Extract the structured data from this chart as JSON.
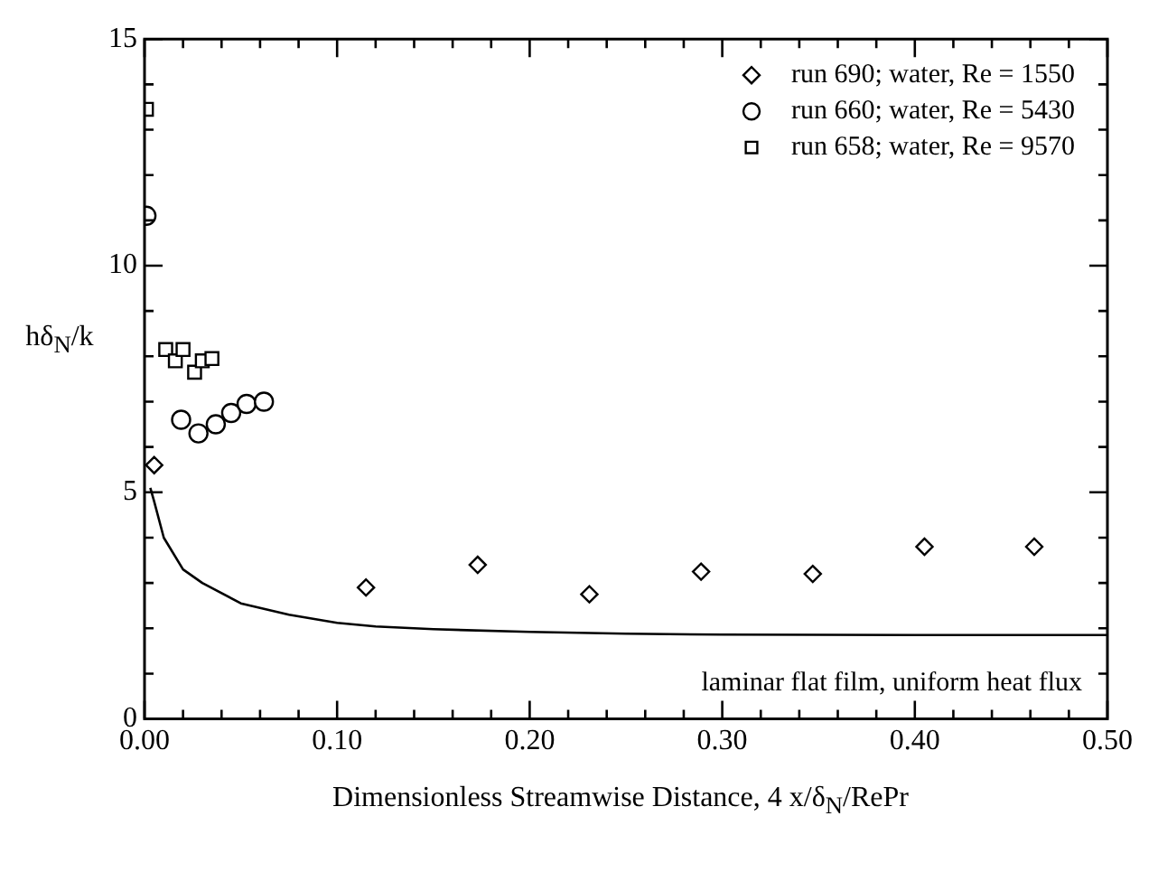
{
  "chart_data": {
    "type": "scatter",
    "xlabel": "Dimensionless Streamwise Distance, 4 x/δ$_{N}$/RePr",
    "ylabel": "hδ$_{N}$/k",
    "xlim": [
      0,
      0.5
    ],
    "ylim": [
      0,
      15
    ],
    "xticks": [
      {
        "value": 0,
        "label": "0.00"
      },
      {
        "value": 0.02,
        "label": null
      },
      {
        "value": 0.04,
        "label": null
      },
      {
        "value": 0.06,
        "label": null
      },
      {
        "value": 0.08,
        "label": null
      },
      {
        "value": 0.1,
        "label": "0.10"
      },
      {
        "value": 0.12,
        "label": null
      },
      {
        "value": 0.14,
        "label": null
      },
      {
        "value": 0.16,
        "label": null
      },
      {
        "value": 0.18,
        "label": null
      },
      {
        "value": 0.2,
        "label": "0.20"
      },
      {
        "value": 0.22,
        "label": null
      },
      {
        "value": 0.24,
        "label": null
      },
      {
        "value": 0.26,
        "label": null
      },
      {
        "value": 0.28,
        "label": null
      },
      {
        "value": 0.3,
        "label": "0.30"
      },
      {
        "value": 0.32,
        "label": null
      },
      {
        "value": 0.34,
        "label": null
      },
      {
        "value": 0.36,
        "label": null
      },
      {
        "value": 0.38,
        "label": null
      },
      {
        "value": 0.4,
        "label": "0.40"
      },
      {
        "value": 0.42,
        "label": null
      },
      {
        "value": 0.44,
        "label": null
      },
      {
        "value": 0.46,
        "label": null
      },
      {
        "value": 0.48,
        "label": null
      },
      {
        "value": 0.5,
        "label": "0.50"
      }
    ],
    "yticks": [
      0,
      {
        "value": 1,
        "label": null
      },
      {
        "value": 2,
        "label": null
      },
      {
        "value": 3,
        "label": null
      },
      {
        "value": 4,
        "label": null
      },
      5,
      {
        "value": 6,
        "label": null
      },
      {
        "value": 7,
        "label": null
      },
      {
        "value": 8,
        "label": null
      },
      {
        "value": 9,
        "label": null
      },
      10,
      {
        "value": 11,
        "label": null
      },
      {
        "value": 12,
        "label": null
      },
      {
        "value": 13,
        "label": null
      },
      {
        "value": 14,
        "label": null
      },
      15
    ],
    "grid": false,
    "legend": "top right",
    "line_style": "solid",
    "series": [
      {
        "name": "run 690; water, Re = 1550",
        "color": "#000000",
        "marker": "diamond",
        "x": [
          0.005,
          0.115,
          0.173,
          0.231,
          0.289,
          0.347,
          0.405,
          0.462
        ],
        "values": [
          5.6,
          2.9,
          3.4,
          2.75,
          3.25,
          3.2,
          3.8,
          3.8
        ]
      },
      {
        "name": "run 660; water, Re = 5430",
        "color": "#000000",
        "marker": "circle",
        "x": [
          0.001,
          0.019,
          0.028,
          0.037,
          0.045,
          0.053,
          0.062
        ],
        "values": [
          11.1,
          6.6,
          6.3,
          6.5,
          6.75,
          6.95,
          7.0
        ]
      },
      {
        "name": "run 658; water, Re = 9570",
        "color": "#000000",
        "marker": "square",
        "x": [
          0.001,
          0.011,
          0.016,
          0.02,
          0.026,
          0.03,
          0.035
        ],
        "values": [
          13.45,
          8.15,
          7.9,
          8.15,
          7.65,
          7.9,
          7.95
        ]
      },
      {
        "type": "line",
        "color": "#000000",
        "marker": "none",
        "x": [
          0.003,
          0.005,
          0.01,
          0.02,
          0.03,
          0.05,
          0.075,
          0.1,
          0.12,
          0.15,
          0.2,
          0.25,
          0.3,
          0.4,
          0.5
        ],
        "values": [
          5.1,
          4.8,
          4.0,
          3.3,
          3.0,
          2.55,
          2.3,
          2.12,
          2.04,
          1.98,
          1.92,
          1.88,
          1.86,
          1.85,
          1.85
        ]
      }
    ],
    "annotations": [
      "laminar flat film, uniform heat flux"
    ]
  }
}
